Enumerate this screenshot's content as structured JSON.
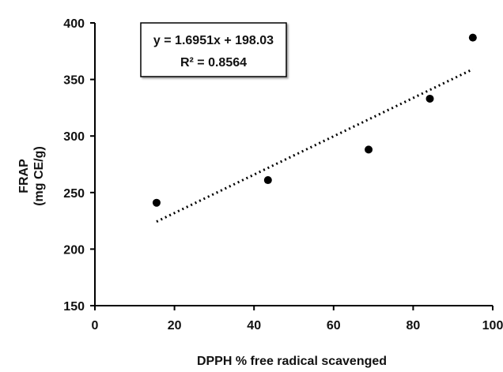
{
  "chart_data": {
    "type": "scatter",
    "title": "",
    "xlabel": "DPPH % free radical scavenged",
    "ylabel_lines": [
      "FRAP",
      "(mg CE/g)"
    ],
    "xlim": [
      0,
      100
    ],
    "ylim": [
      150,
      400
    ],
    "x_ticks": [
      0,
      20,
      40,
      60,
      80,
      100
    ],
    "y_ticks": [
      150,
      200,
      250,
      300,
      350,
      400
    ],
    "grid": false,
    "series": [
      {
        "points": [
          {
            "x": 15.5,
            "y": 241
          },
          {
            "x": 43.5,
            "y": 261
          },
          {
            "x": 68.8,
            "y": 288
          },
          {
            "x": 84.2,
            "y": 333
          },
          {
            "x": 95.0,
            "y": 387
          }
        ],
        "color": "#000000"
      }
    ],
    "trendline": {
      "style": "dotted",
      "slope": 1.6951,
      "intercept": 198.03,
      "x_range": [
        15.5,
        95.0
      ],
      "equation_label": "y = 1.6951x + 198.03",
      "r2_label": "R² = 0.8564"
    }
  }
}
